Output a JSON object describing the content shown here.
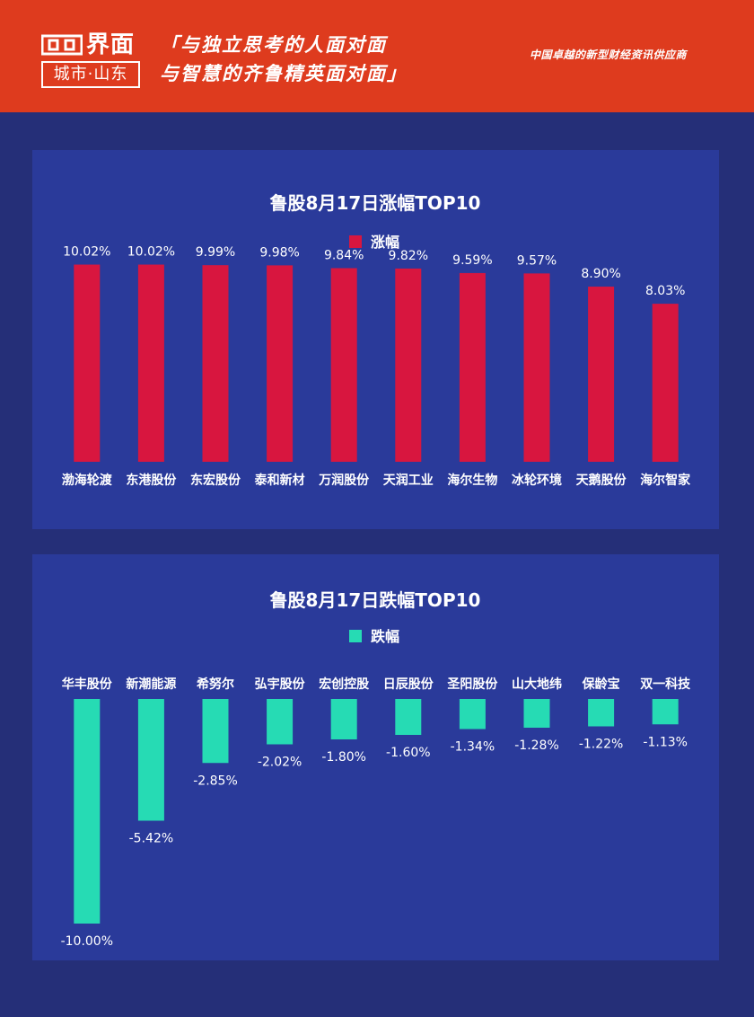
{
  "header": {
    "logo_text": "界面",
    "logo_city": "城市·山东",
    "slogan_line1": "「与独立思考的人面对面",
    "slogan_line2": "与智慧的齐鲁精英面对面」",
    "tagline": "中国卓越的新型财经资讯供应商"
  },
  "colors": {
    "header_bg": "#de3b1e",
    "page_bg": "#252f78",
    "panel_bg": "#2a3a9a",
    "gain_bar": "#d8163f",
    "loss_bar": "#26dbb4"
  },
  "chart_data": [
    {
      "type": "bar",
      "title": "鲁股8月17日涨幅TOP10",
      "legend": "涨幅",
      "legend_position": "top",
      "color": "#d8163f",
      "categories": [
        "渤海轮渡",
        "东港股份",
        "东宏股份",
        "泰和新材",
        "万润股份",
        "天润工业",
        "海尔生物",
        "冰轮环境",
        "天鹅股份",
        "海尔智家"
      ],
      "values": [
        10.02,
        10.02,
        9.99,
        9.98,
        9.84,
        9.82,
        9.59,
        9.57,
        8.9,
        8.03
      ],
      "labels": [
        "10.02%",
        "10.02%",
        "9.99%",
        "9.98%",
        "9.84%",
        "9.82%",
        "9.59%",
        "9.57%",
        "8.90%",
        "8.03%"
      ],
      "ylim": [
        0,
        10.5
      ],
      "grid": false
    },
    {
      "type": "bar",
      "title": "鲁股8月17日跌幅TOP10",
      "legend": "跌幅",
      "legend_position": "top",
      "color": "#26dbb4",
      "categories": [
        "华丰股份",
        "新潮能源",
        "希努尔",
        "弘宇股份",
        "宏创控股",
        "日辰股份",
        "圣阳股份",
        "山大地纬",
        "保龄宝",
        "双一科技"
      ],
      "values": [
        -10.0,
        -5.42,
        -2.85,
        -2.02,
        -1.8,
        -1.6,
        -1.34,
        -1.28,
        -1.22,
        -1.13
      ],
      "labels": [
        "-10.00%",
        "-5.42%",
        "-2.85%",
        "-2.02%",
        "-1.80%",
        "-1.60%",
        "-1.34%",
        "-1.28%",
        "-1.22%",
        "-1.13%"
      ],
      "ylim": [
        -10,
        0
      ],
      "grid": false
    }
  ]
}
